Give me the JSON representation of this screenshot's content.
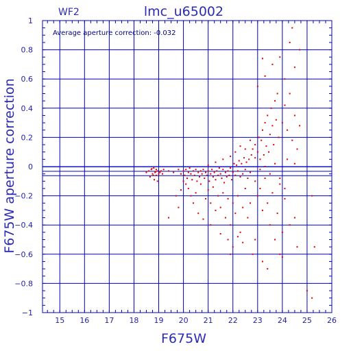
{
  "chart_data": {
    "type": "scatter",
    "title": "lmc_u65002",
    "chip": "WF2",
    "annotation": "Average aperture correction: -0.032",
    "average_correction": -0.032,
    "xlabel": "F675W",
    "ylabel": "F675W aperture correction",
    "xlim": [
      14.3,
      26
    ],
    "ylim": [
      -1,
      1
    ],
    "xticks": [
      "15",
      "16",
      "17",
      "18",
      "19",
      "20",
      "21",
      "22",
      "23",
      "24",
      "25",
      "26"
    ],
    "yticks": [
      "1",
      "0.8",
      "0.6",
      "0.4",
      "0.2",
      "0",
      "−0.2",
      "−0.4",
      "−0.6",
      "−0.8",
      "−1"
    ],
    "grid": true,
    "reference_lines": [
      -0.032,
      -0.002,
      -0.062
    ],
    "point_color": "#e00000",
    "grid_color": "#0000c0",
    "points": [
      [
        18.6,
        -0.03
      ],
      [
        18.7,
        -0.02
      ],
      [
        18.75,
        -0.05
      ],
      [
        18.8,
        -0.01
      ],
      [
        18.85,
        -0.04
      ],
      [
        18.9,
        -0.06
      ],
      [
        18.95,
        -0.03
      ],
      [
        19.0,
        -0.05
      ],
      [
        18.65,
        -0.07
      ],
      [
        18.72,
        -0.015
      ],
      [
        18.82,
        -0.09
      ],
      [
        18.9,
        -0.02
      ],
      [
        19.05,
        -0.04
      ],
      [
        19.1,
        -0.03
      ],
      [
        18.5,
        -0.04
      ],
      [
        18.95,
        -0.1
      ],
      [
        18.78,
        -0.06
      ],
      [
        19.2,
        -0.02
      ],
      [
        19.15,
        -0.05
      ],
      [
        18.88,
        -0.035
      ],
      [
        19.4,
        -0.03
      ],
      [
        19.6,
        -0.04
      ],
      [
        19.8,
        -0.02
      ],
      [
        19.9,
        -0.05
      ],
      [
        20.0,
        -0.03
      ],
      [
        20.05,
        -0.06
      ],
      [
        20.1,
        -0.02
      ],
      [
        20.15,
        -0.08
      ],
      [
        20.2,
        -0.04
      ],
      [
        20.25,
        -0.01
      ],
      [
        20.3,
        -0.05
      ],
      [
        20.35,
        -0.09
      ],
      [
        20.4,
        -0.03
      ],
      [
        20.45,
        -0.06
      ],
      [
        20.5,
        -0.02
      ],
      [
        20.55,
        -0.1
      ],
      [
        20.6,
        -0.04
      ],
      [
        20.65,
        -0.07
      ],
      [
        20.7,
        -0.03
      ],
      [
        20.75,
        -0.05
      ],
      [
        20.8,
        -0.02
      ],
      [
        20.85,
        -0.08
      ],
      [
        20.9,
        -0.04
      ],
      [
        20.95,
        -0.06
      ],
      [
        21.0,
        -0.03
      ],
      [
        21.05,
        -0.1
      ],
      [
        21.1,
        -0.05
      ],
      [
        21.15,
        -0.02
      ],
      [
        21.2,
        -0.07
      ],
      [
        21.25,
        -0.04
      ],
      [
        21.3,
        -0.09
      ],
      [
        21.35,
        -0.03
      ],
      [
        21.4,
        -0.06
      ],
      [
        21.45,
        -0.01
      ],
      [
        21.5,
        -0.05
      ],
      [
        21.55,
        -0.08
      ],
      [
        21.6,
        -0.02
      ],
      [
        21.65,
        -0.11
      ],
      [
        21.7,
        -0.04
      ],
      [
        21.75,
        -0.07
      ],
      [
        21.8,
        -0.03
      ],
      [
        21.85,
        -0.06
      ],
      [
        21.9,
        -0.01
      ],
      [
        21.95,
        -0.09
      ],
      [
        22.0,
        -0.04
      ],
      [
        22.05,
        0.02
      ],
      [
        22.1,
        -0.06
      ],
      [
        22.15,
        0.01
      ],
      [
        22.2,
        -0.03
      ],
      [
        22.25,
        0.04
      ],
      [
        22.3,
        -0.07
      ],
      [
        22.35,
        0.02
      ],
      [
        22.4,
        -0.05
      ],
      [
        22.45,
        0.06
      ],
      [
        22.5,
        -0.02
      ],
      [
        22.55,
        0.03
      ],
      [
        22.6,
        -0.08
      ],
      [
        22.65,
        0.05
      ],
      [
        22.7,
        -0.04
      ],
      [
        22.75,
        0.08
      ],
      [
        20.2,
        -0.15
      ],
      [
        20.3,
        -0.2
      ],
      [
        20.5,
        -0.18
      ],
      [
        20.7,
        -0.12
      ],
      [
        20.9,
        -0.22
      ],
      [
        21.0,
        -0.16
      ],
      [
        21.1,
        -0.25
      ],
      [
        21.2,
        -0.14
      ],
      [
        21.3,
        -0.3
      ],
      [
        21.4,
        -0.2
      ],
      [
        21.5,
        -0.28
      ],
      [
        21.6,
        -0.18
      ],
      [
        21.7,
        -0.35
      ],
      [
        21.8,
        -0.22
      ],
      [
        21.9,
        -0.4
      ],
      [
        22.0,
        -0.25
      ],
      [
        22.1,
        -0.32
      ],
      [
        22.2,
        -0.2
      ],
      [
        22.3,
        -0.45
      ],
      [
        22.4,
        -0.28
      ],
      [
        20.6,
        -0.32
      ],
      [
        20.8,
        -0.36
      ],
      [
        21.1,
        -0.4
      ],
      [
        21.5,
        -0.46
      ],
      [
        21.8,
        -0.5
      ],
      [
        22.0,
        -0.55
      ],
      [
        22.4,
        -0.52
      ],
      [
        22.8,
        -0.6
      ],
      [
        19.8,
        -0.28
      ],
      [
        19.4,
        -0.35
      ],
      [
        22.8,
        0.12
      ],
      [
        22.9,
        0.15
      ],
      [
        23.0,
        0.1
      ],
      [
        23.05,
        0.2
      ],
      [
        23.1,
        0.05
      ],
      [
        23.15,
        0.18
      ],
      [
        23.2,
        0.25
      ],
      [
        23.25,
        0.08
      ],
      [
        23.3,
        0.3
      ],
      [
        23.35,
        0.14
      ],
      [
        23.4,
        0.35
      ],
      [
        23.45,
        0.1
      ],
      [
        23.5,
        0.22
      ],
      [
        23.55,
        0.4
      ],
      [
        23.6,
        0.28
      ],
      [
        23.65,
        0.15
      ],
      [
        23.7,
        0.45
      ],
      [
        23.75,
        0.32
      ],
      [
        23.8,
        0.5
      ],
      [
        23.85,
        0.2
      ],
      [
        23.0,
        0.55
      ],
      [
        23.3,
        0.62
      ],
      [
        23.6,
        0.7
      ],
      [
        23.9,
        0.75
      ],
      [
        24.1,
        0.6
      ],
      [
        24.3,
        0.85
      ],
      [
        24.4,
        0.95
      ],
      [
        24.5,
        0.68
      ],
      [
        24.7,
        0.8
      ],
      [
        23.2,
        0.74
      ],
      [
        24.0,
        0.3
      ],
      [
        24.1,
        0.42
      ],
      [
        24.2,
        0.25
      ],
      [
        24.3,
        0.5
      ],
      [
        24.4,
        0.18
      ],
      [
        24.5,
        0.35
      ],
      [
        24.6,
        0.12
      ],
      [
        24.7,
        0.28
      ],
      [
        24.2,
        0.05
      ],
      [
        24.5,
        0.02
      ],
      [
        22.9,
        -0.1
      ],
      [
        23.0,
        -0.2
      ],
      [
        23.1,
        -0.15
      ],
      [
        23.2,
        -0.3
      ],
      [
        23.3,
        -0.08
      ],
      [
        23.4,
        -0.25
      ],
      [
        23.5,
        -0.4
      ],
      [
        23.6,
        -0.18
      ],
      [
        23.7,
        -0.5
      ],
      [
        23.8,
        -0.32
      ],
      [
        23.9,
        -0.12
      ],
      [
        24.0,
        -0.45
      ],
      [
        24.1,
        -0.22
      ],
      [
        24.3,
        -0.4
      ],
      [
        24.5,
        -0.35
      ],
      [
        24.6,
        -0.55
      ],
      [
        23.2,
        -0.65
      ],
      [
        22.9,
        -0.5
      ],
      [
        23.4,
        -0.7
      ],
      [
        25.0,
        -0.85
      ],
      [
        25.2,
        -0.9
      ],
      [
        25.2,
        -0.2
      ],
      [
        25.3,
        -0.55
      ],
      [
        24.0,
        -0.62
      ],
      [
        23.9,
        -0.6
      ],
      [
        22.5,
        -0.15
      ],
      [
        22.6,
        -0.35
      ],
      [
        22.7,
        -0.25
      ],
      [
        21.9,
        -0.6
      ],
      [
        22.2,
        -0.48
      ],
      [
        20.0,
        -0.1
      ],
      [
        19.9,
        -0.16
      ],
      [
        20.1,
        -0.12
      ],
      [
        19.7,
        -0.2
      ],
      [
        20.4,
        -0.25
      ],
      [
        21.0,
        0.01
      ],
      [
        21.3,
        0.03
      ],
      [
        21.6,
        0.05
      ],
      [
        21.9,
        0.07
      ],
      [
        22.1,
        0.1
      ],
      [
        22.3,
        0.14
      ],
      [
        22.5,
        0.12
      ],
      [
        22.7,
        0.18
      ],
      [
        22.9,
        0.06
      ],
      [
        23.1,
        -0.02
      ],
      [
        23.3,
        0.0
      ],
      [
        23.5,
        -0.05
      ],
      [
        23.7,
        0.02
      ],
      [
        23.9,
        -0.08
      ],
      [
        24.1,
        -0.15
      ]
    ]
  }
}
